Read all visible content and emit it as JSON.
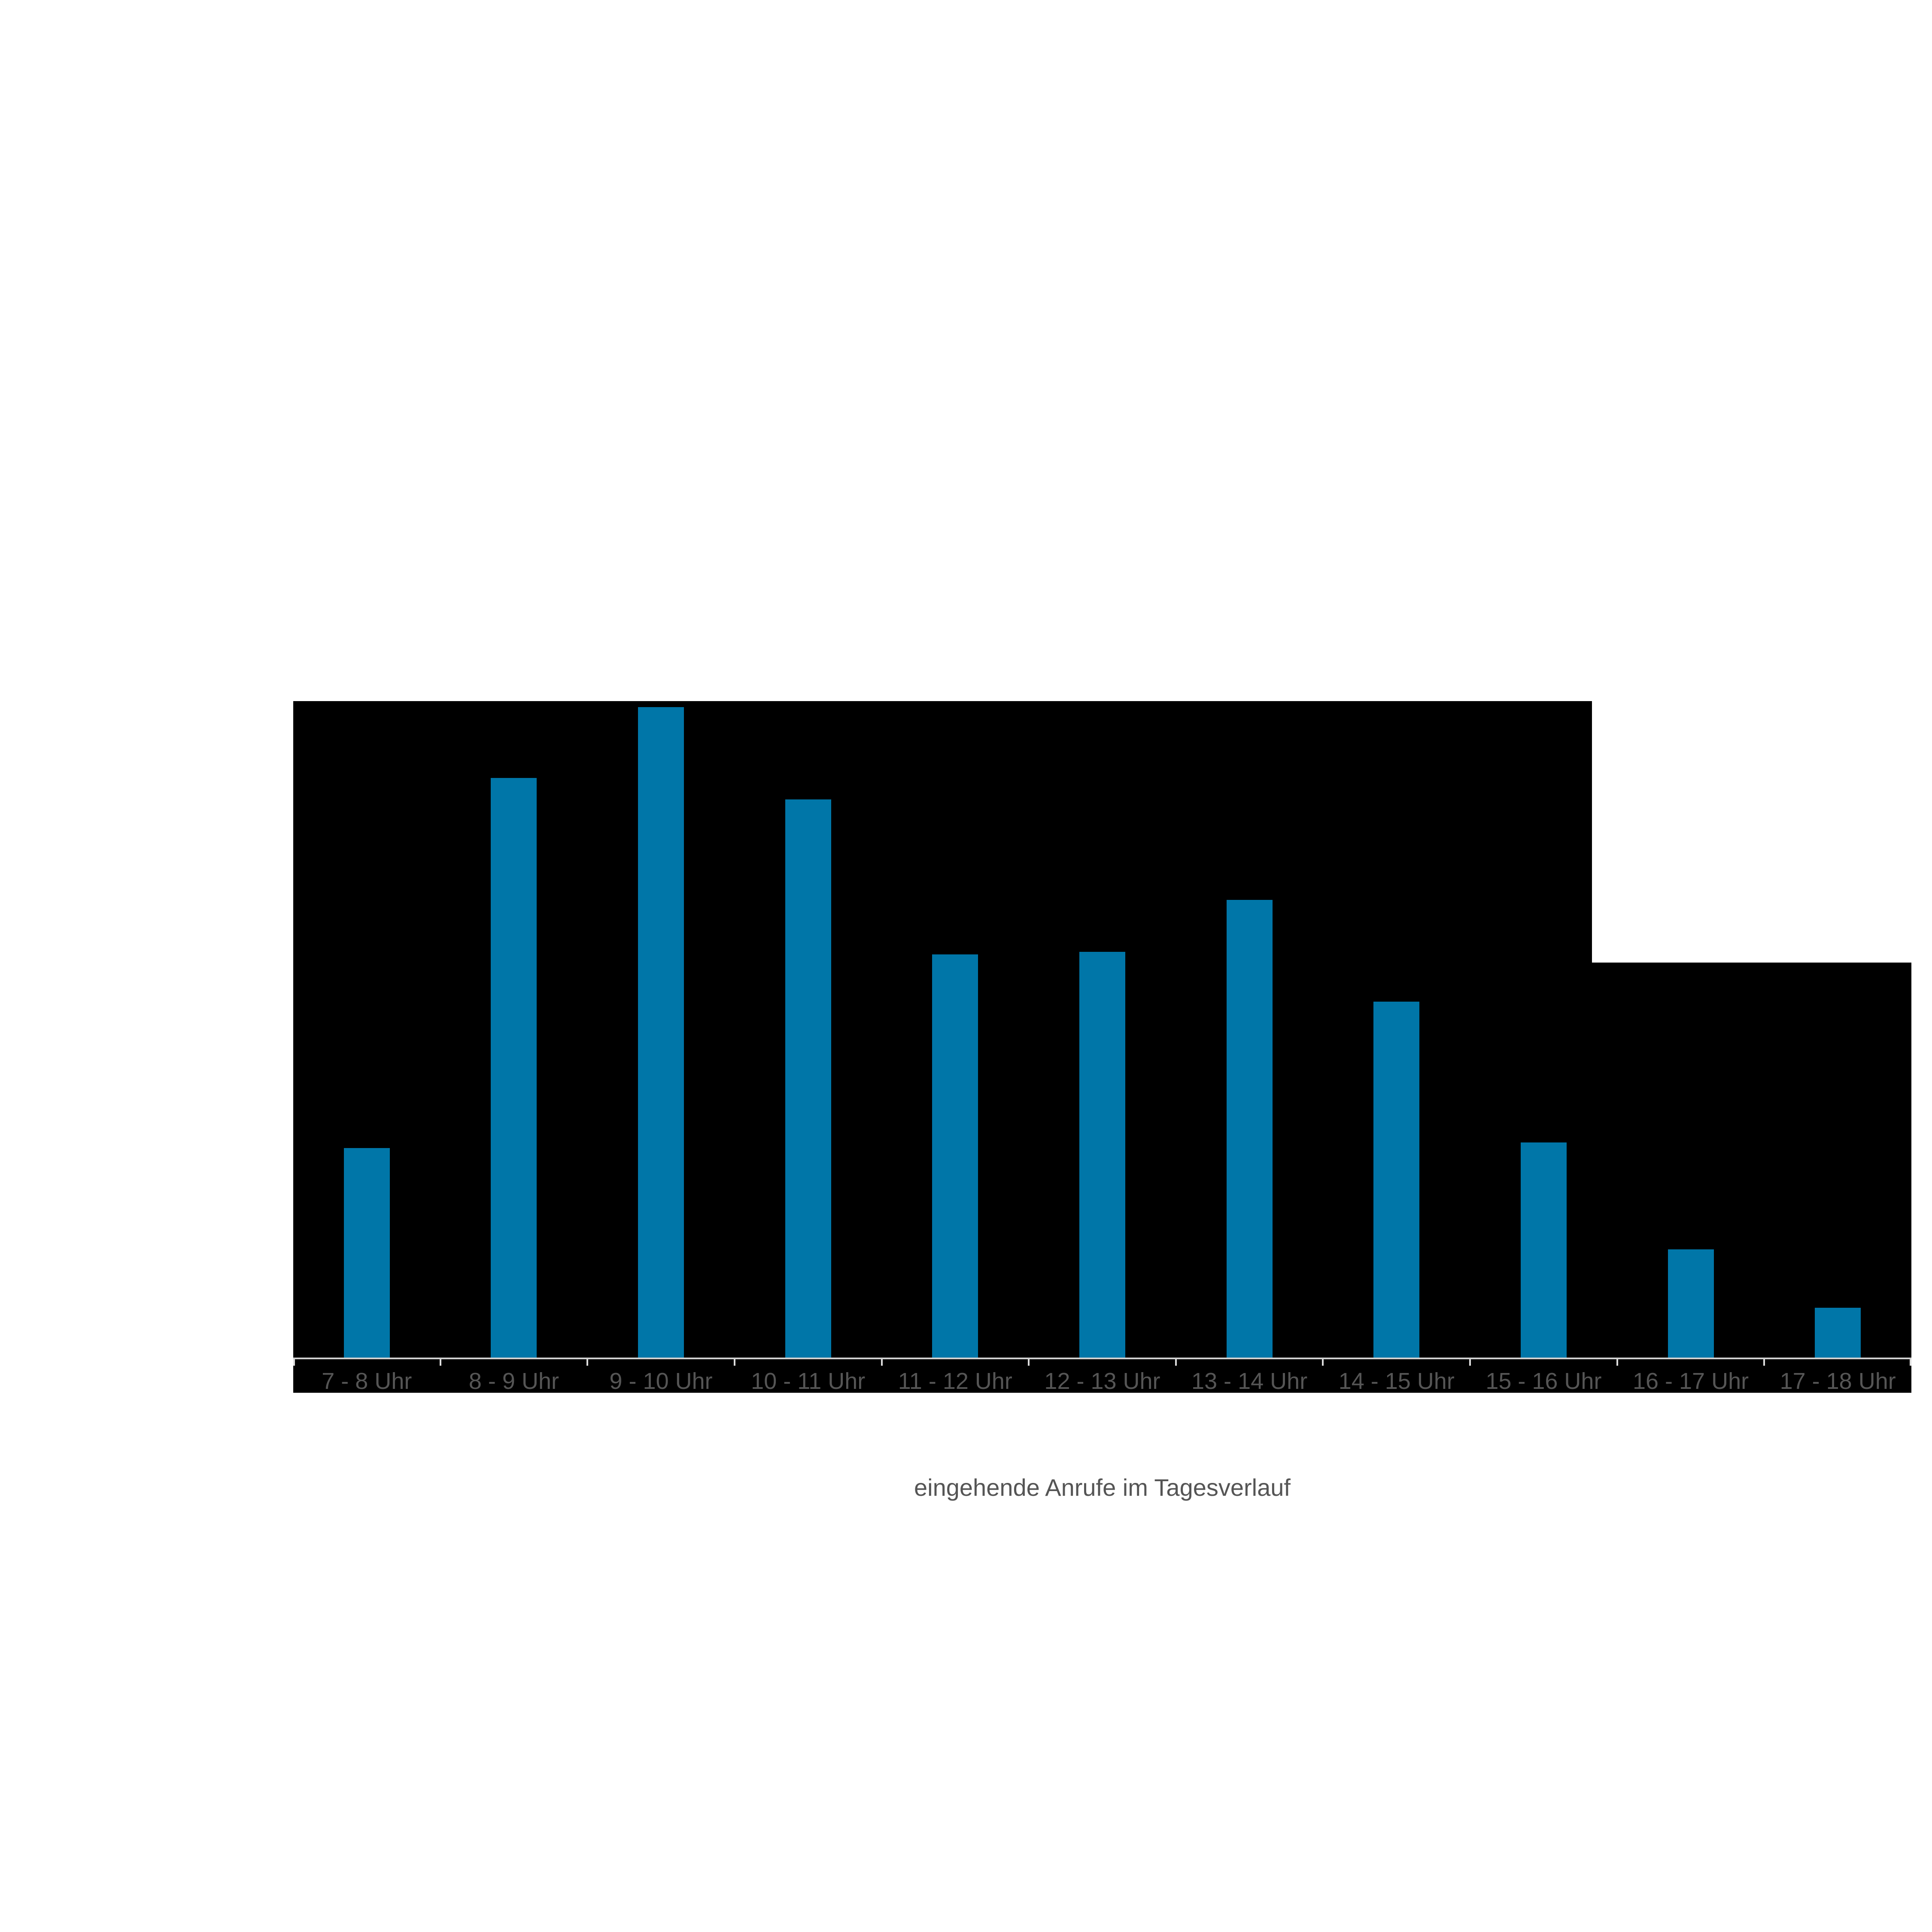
{
  "page": {
    "background_color": "#ffffff"
  },
  "chart_data": {
    "type": "bar",
    "title": "eingehende Anrufe im Tagesverlauf",
    "categories": [
      "7 - 8 Uhr",
      "8 - 9 Uhr",
      "9 - 10 Uhr",
      "10 - 11 Uhr",
      "11 - 12 Uhr",
      "12 - 13 Uhr",
      "13 - 14 Uhr",
      "14 - 15 Uhr",
      "15 - 16 Uhr",
      "16 - 17 Uhr",
      "17 - 18 Uhr"
    ],
    "values": [
      31.9,
      88.3,
      99.1,
      85.0,
      61.4,
      61.8,
      69.7,
      54.2,
      32.8,
      16.5,
      7.6
    ],
    "values_unit": "percent_of_plot_height (no y-axis or value labels are visible in the chart)",
    "xlabel": "",
    "ylabel": "",
    "ylim": [
      0,
      100
    ],
    "grid": "off",
    "legend": "none",
    "y_axis_visible": false,
    "x_tick_count": 12,
    "style": {
      "bar_color": "#0076a8",
      "plot_background_color": "#000000",
      "axis_line_color": "#cfcfcf",
      "tick_color": "#dcdcdc",
      "label_color": "#555555",
      "title_color": "#555555"
    }
  }
}
